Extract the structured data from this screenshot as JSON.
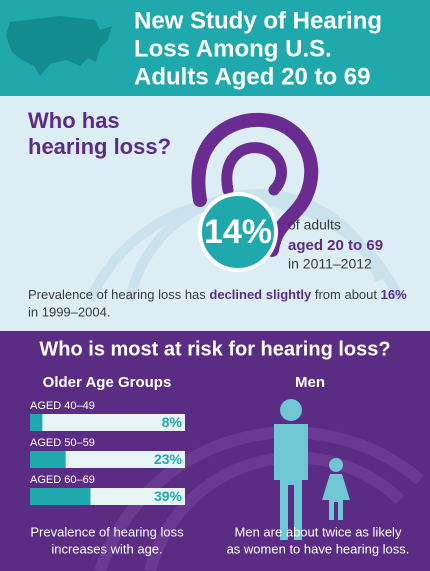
{
  "header": {
    "title_lines": [
      "New Study of Hearing",
      "Loss Among U.S.",
      "Adults Aged 20 to 69"
    ]
  },
  "who_has": {
    "title_lines": [
      "Who has",
      "hearing loss?"
    ],
    "stat": "14%",
    "stat_lines": [
      "of adults",
      "aged 20 to 69",
      "in 2011–2012"
    ],
    "note": [
      "Prevalence of hearing loss has ",
      "declined slightly",
      " from about ",
      "16%"
    ],
    "note_line2": "in 1999–2004."
  },
  "at_risk": {
    "title": "Who is most at risk for hearing loss?",
    "age": {
      "heading": "Older Age Groups",
      "chart_data": {
        "type": "bar",
        "categories": [
          "AGED 40–49",
          "AGED 50–59",
          "AGED 60–69"
        ],
        "values": [
          8,
          23,
          39
        ],
        "value_labels": [
          "8%",
          "23%",
          "39%"
        ],
        "xlim": [
          0,
          100
        ],
        "color": "#1fa9ad"
      },
      "caption_lines": [
        "Prevalence of hearing loss",
        "increases with age."
      ]
    },
    "sex": {
      "heading": "Men",
      "caption_lines": [
        "Men are about twice as likely",
        "as women to have hearing loss."
      ]
    }
  }
}
